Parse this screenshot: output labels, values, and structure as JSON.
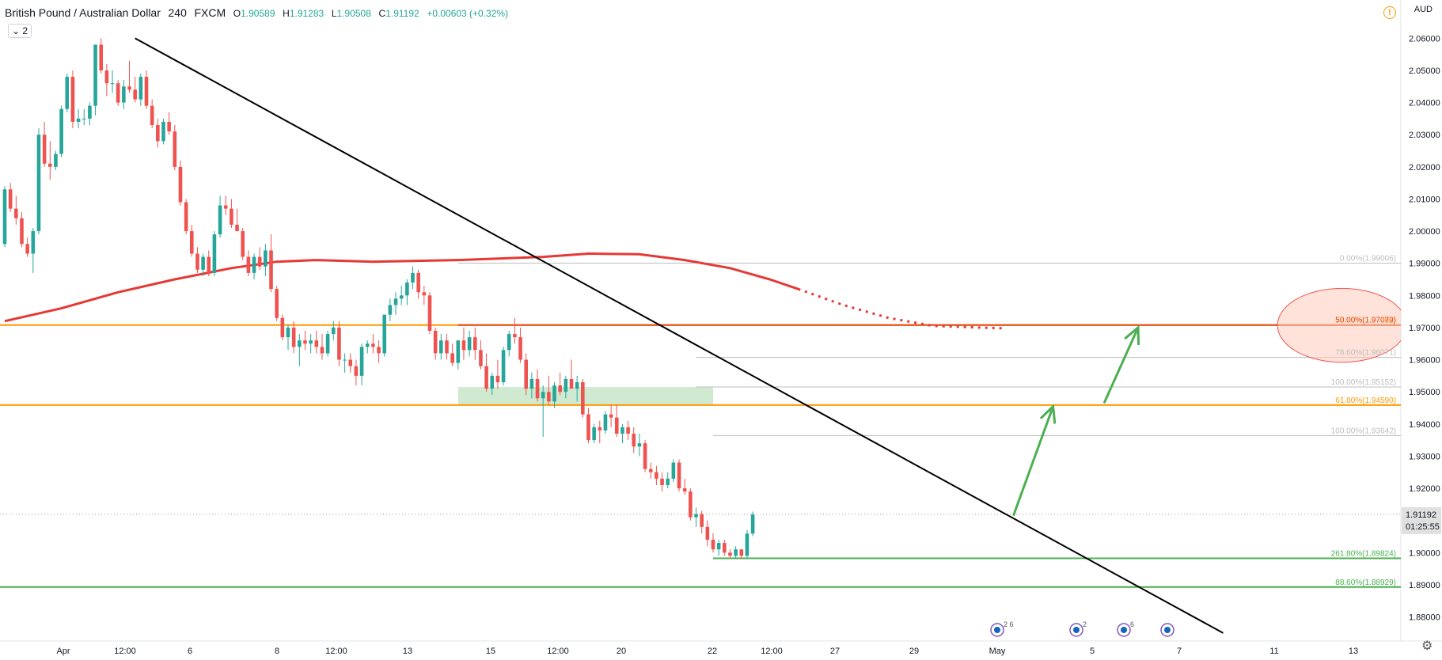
{
  "header": {
    "symbol": "British Pound / Australian Dollar",
    "interval": "240",
    "exchange": "FXCM",
    "open_label": "O",
    "open": "1.90589",
    "high_label": "H",
    "high": "1.91283",
    "low_label": "L",
    "low": "1.90508",
    "close_label": "C",
    "close": "1.91192",
    "change": "+0.00603 (+0.32%)"
  },
  "layers_badge": "2",
  "currency": "AUD",
  "warning_icon": "!",
  "settings_icon": "gear-icon",
  "colors": {
    "up": "#26a69a",
    "down": "#ef5350",
    "ma": "#e53935",
    "orange": "#ff9800",
    "green": "#4caf50",
    "trend": "#000000"
  },
  "chart_data": {
    "type": "candlestick",
    "ylim": [
      1.8725,
      2.0655
    ],
    "y_ticks": [
      "2.06000",
      "2.05000",
      "2.04000",
      "2.03000",
      "2.02000",
      "2.01000",
      "2.00000",
      "1.99000",
      "1.98000",
      "1.97000",
      "1.96000",
      "1.95000",
      "1.94000",
      "1.93000",
      "1.92000",
      "1.91000",
      "1.90000",
      "1.89000",
      "1.88000"
    ],
    "x_ticks": [
      "Apr",
      "12:00",
      "6",
      "8",
      "12:00",
      "13",
      "15",
      "12:00",
      "20",
      "22",
      "12:00",
      "27",
      "29",
      "May",
      "5",
      "7",
      "11",
      "13"
    ],
    "last_price": "1.91192",
    "countdown": "01:25:55",
    "candles": [
      [
        1.996,
        2.014,
        1.995,
        2.013
      ],
      [
        2.013,
        2.015,
        2.006,
        2.007
      ],
      [
        2.007,
        2.011,
        2.002,
        2.004
      ],
      [
        2.004,
        2.006,
        1.995,
        1.996
      ],
      [
        1.996,
        1.998,
        1.992,
        1.993
      ],
      [
        1.993,
        2.001,
        1.987,
        2.0
      ],
      [
        2.0,
        2.032,
        1.999,
        2.03
      ],
      [
        2.03,
        2.034,
        2.02,
        2.021
      ],
      [
        2.021,
        2.028,
        2.016,
        2.02
      ],
      [
        2.02,
        2.025,
        2.019,
        2.024
      ],
      [
        2.024,
        2.039,
        2.023,
        2.038
      ],
      [
        2.038,
        2.049,
        2.037,
        2.048
      ],
      [
        2.048,
        2.05,
        2.032,
        2.034
      ],
      [
        2.034,
        2.038,
        2.032,
        2.035
      ],
      [
        2.035,
        2.038,
        2.033,
        2.035
      ],
      [
        2.035,
        2.04,
        2.033,
        2.039
      ],
      [
        2.039,
        2.058,
        2.036,
        2.058
      ],
      [
        2.058,
        2.06,
        2.049,
        2.05
      ],
      [
        2.05,
        2.052,
        2.042,
        2.046
      ],
      [
        2.046,
        2.05,
        2.043,
        2.046
      ],
      [
        2.046,
        2.047,
        2.039,
        2.04
      ],
      [
        2.04,
        2.047,
        2.038,
        2.045
      ],
      [
        2.045,
        2.053,
        2.043,
        2.044
      ],
      [
        2.044,
        2.048,
        2.04,
        2.041
      ],
      [
        2.041,
        2.049,
        2.039,
        2.048
      ],
      [
        2.048,
        2.05,
        2.038,
        2.039
      ],
      [
        2.039,
        2.041,
        2.032,
        2.033
      ],
      [
        2.033,
        2.035,
        2.026,
        2.028
      ],
      [
        2.028,
        2.035,
        2.027,
        2.034
      ],
      [
        2.034,
        2.037,
        2.03,
        2.031
      ],
      [
        2.031,
        2.033,
        2.019,
        2.02
      ],
      [
        2.02,
        2.022,
        2.008,
        2.009
      ],
      [
        2.009,
        2.01,
        1.999,
        2.0
      ],
      [
        2.0,
        2.002,
        1.992,
        1.993
      ],
      [
        1.993,
        1.995,
        1.987,
        1.988
      ],
      [
        1.988,
        1.993,
        1.986,
        1.992
      ],
      [
        1.992,
        1.994,
        1.986,
        1.987
      ],
      [
        1.987,
        2.0,
        1.986,
        1.999
      ],
      [
        1.999,
        2.011,
        1.998,
        2.008
      ],
      [
        2.008,
        2.011,
        2.005,
        2.007
      ],
      [
        2.007,
        2.01,
        2.001,
        2.002
      ],
      [
        2.002,
        2.007,
        2.0,
        2.0
      ],
      [
        2.0,
        2.001,
        1.991,
        1.992
      ],
      [
        1.992,
        1.994,
        1.986,
        1.987
      ],
      [
        1.987,
        1.993,
        1.985,
        1.992
      ],
      [
        1.992,
        1.995,
        1.988,
        1.989
      ],
      [
        1.989,
        1.996,
        1.986,
        1.994
      ],
      [
        1.994,
        1.999,
        1.981,
        1.982
      ],
      [
        1.982,
        1.983,
        1.972,
        1.973
      ],
      [
        1.973,
        1.974,
        1.966,
        1.967
      ],
      [
        1.967,
        1.971,
        1.963,
        1.97
      ],
      [
        1.97,
        1.972,
        1.962,
        1.964
      ],
      [
        1.964,
        1.968,
        1.958,
        1.966
      ],
      [
        1.966,
        1.969,
        1.963,
        1.965
      ],
      [
        1.965,
        1.968,
        1.962,
        1.966
      ],
      [
        1.966,
        1.969,
        1.962,
        1.964
      ],
      [
        1.964,
        1.968,
        1.96,
        1.962
      ],
      [
        1.962,
        1.969,
        1.961,
        1.968
      ],
      [
        1.968,
        1.972,
        1.966,
        1.97
      ],
      [
        1.97,
        1.972,
        1.958,
        1.96
      ],
      [
        1.96,
        1.962,
        1.956,
        1.96
      ],
      [
        1.96,
        1.962,
        1.956,
        1.958
      ],
      [
        1.958,
        1.96,
        1.952,
        1.955
      ],
      [
        1.955,
        1.965,
        1.952,
        1.964
      ],
      [
        1.964,
        1.966,
        1.962,
        1.965
      ],
      [
        1.965,
        1.968,
        1.962,
        1.964
      ],
      [
        1.964,
        1.966,
        1.959,
        1.962
      ],
      [
        1.962,
        1.974,
        1.961,
        1.974
      ],
      [
        1.974,
        1.979,
        1.972,
        1.977
      ],
      [
        1.977,
        1.981,
        1.974,
        1.979
      ],
      [
        1.979,
        1.983,
        1.977,
        1.98
      ],
      [
        1.98,
        1.985,
        1.977,
        1.984
      ],
      [
        1.984,
        1.989,
        1.982,
        1.987
      ],
      [
        1.987,
        1.988,
        1.979,
        1.981
      ],
      [
        1.981,
        1.983,
        1.977,
        1.98
      ],
      [
        1.98,
        1.981,
        1.968,
        1.969
      ],
      [
        1.969,
        1.97,
        1.96,
        1.962
      ],
      [
        1.962,
        1.968,
        1.96,
        1.966
      ],
      [
        1.966,
        1.968,
        1.96,
        1.962
      ],
      [
        1.962,
        1.965,
        1.958,
        1.959
      ],
      [
        1.959,
        1.966,
        1.957,
        1.966
      ],
      [
        1.966,
        1.97,
        1.96,
        1.963
      ],
      [
        1.963,
        1.969,
        1.961,
        1.967
      ],
      [
        1.967,
        1.97,
        1.96,
        1.963
      ],
      [
        1.963,
        1.966,
        1.957,
        1.958
      ],
      [
        1.958,
        1.962,
        1.95,
        1.951
      ],
      [
        1.951,
        1.956,
        1.949,
        1.955
      ],
      [
        1.955,
        1.96,
        1.951,
        1.953
      ],
      [
        1.953,
        1.964,
        1.952,
        1.963
      ],
      [
        1.963,
        1.969,
        1.961,
        1.968
      ],
      [
        1.968,
        1.973,
        1.965,
        1.967
      ],
      [
        1.967,
        1.97,
        1.959,
        1.96
      ],
      [
        1.96,
        1.962,
        1.949,
        1.951
      ],
      [
        1.951,
        1.956,
        1.948,
        1.954
      ],
      [
        1.954,
        1.957,
        1.947,
        1.948
      ],
      [
        1.948,
        1.952,
        1.936,
        1.95
      ],
      [
        1.95,
        1.955,
        1.946,
        1.947
      ],
      [
        1.947,
        1.953,
        1.945,
        1.952
      ],
      [
        1.952,
        1.956,
        1.949,
        1.95
      ],
      [
        1.95,
        1.955,
        1.948,
        1.954
      ],
      [
        1.954,
        1.96,
        1.951,
        1.951
      ],
      [
        1.951,
        1.955,
        1.947,
        1.953
      ],
      [
        1.953,
        1.954,
        1.942,
        1.943
      ],
      [
        1.943,
        1.945,
        1.934,
        1.935
      ],
      [
        1.935,
        1.94,
        1.934,
        1.939
      ],
      [
        1.939,
        1.941,
        1.934,
        1.938
      ],
      [
        1.938,
        1.944,
        1.937,
        1.943
      ],
      [
        1.943,
        1.946,
        1.939,
        1.942
      ],
      [
        1.942,
        1.946,
        1.936,
        1.937
      ],
      [
        1.937,
        1.94,
        1.934,
        1.939
      ],
      [
        1.939,
        1.941,
        1.935,
        1.937
      ],
      [
        1.937,
        1.939,
        1.931,
        1.933
      ],
      [
        1.933,
        1.937,
        1.93,
        1.934
      ],
      [
        1.934,
        1.935,
        1.925,
        1.926
      ],
      [
        1.926,
        1.928,
        1.923,
        1.925
      ],
      [
        1.925,
        1.927,
        1.921,
        1.923
      ],
      [
        1.923,
        1.925,
        1.919,
        1.921
      ],
      [
        1.921,
        1.925,
        1.92,
        1.923
      ],
      [
        1.923,
        1.929,
        1.922,
        1.928
      ],
      [
        1.928,
        1.929,
        1.919,
        1.92
      ],
      [
        1.92,
        1.923,
        1.918,
        1.919
      ],
      [
        1.919,
        1.92,
        1.91,
        1.911
      ],
      [
        1.911,
        1.914,
        1.908,
        1.912
      ],
      [
        1.912,
        1.913,
        1.906,
        1.908
      ],
      [
        1.908,
        1.91,
        1.902,
        1.904
      ],
      [
        1.904,
        1.906,
        1.9,
        1.901
      ],
      [
        1.901,
        1.904,
        1.899,
        1.903
      ],
      [
        1.903,
        1.904,
        1.899,
        1.9
      ],
      [
        1.9,
        1.901,
        1.8982,
        1.899
      ],
      [
        1.899,
        1.902,
        1.898,
        1.901
      ],
      [
        1.901,
        1.901,
        1.898,
        1.899
      ],
      [
        1.899,
        1.907,
        1.898,
        1.9059
      ],
      [
        1.9059,
        1.9128,
        1.9051,
        1.9119
      ]
    ],
    "moving_average": {
      "solid": [
        [
          0,
          1.972
        ],
        [
          10,
          1.976
        ],
        [
          20,
          1.981
        ],
        [
          30,
          1.985
        ],
        [
          40,
          1.9885
        ],
        [
          48,
          1.9905
        ],
        [
          55,
          1.991
        ],
        [
          65,
          1.9905
        ],
        [
          80,
          1.991
        ],
        [
          95,
          1.992
        ],
        [
          103,
          1.993
        ],
        [
          112,
          1.9928
        ],
        [
          120,
          1.991
        ],
        [
          128,
          1.9885
        ],
        [
          135,
          1.985
        ],
        [
          140,
          1.982
        ]
      ],
      "dotted": [
        [
          140,
          1.982
        ],
        [
          148,
          1.977
        ],
        [
          156,
          1.973
        ],
        [
          164,
          1.9705
        ],
        [
          172,
          1.97
        ],
        [
          176,
          1.9698
        ]
      ]
    },
    "trendline": {
      "start": [
        23,
        2.06
      ],
      "end": [
        215,
        1.875
      ]
    },
    "horizontal_lines": [
      {
        "name": "resistance-upper",
        "y": 1.9708,
        "color": "#ff9800",
        "x_from": -1
      },
      {
        "name": "fib-50-line",
        "y": 1.97079,
        "color": "#e64a19",
        "x_from": 80
      },
      {
        "name": "resistance-lower",
        "y": 1.9459,
        "color": "#ff9800",
        "x_from": -1
      },
      {
        "name": "fib-261-line",
        "y": 1.89824,
        "color": "#4caf50",
        "x_from": 125
      },
      {
        "name": "fib-886-line",
        "y": 1.88929,
        "color": "#4caf50",
        "x_from": -1
      },
      {
        "name": "fib-0-line",
        "y": 1.99006,
        "color": "#bdbdbd",
        "x_from": 80
      },
      {
        "name": "fib-786-line",
        "y": 1.96071,
        "color": "#bdbdbd",
        "x_from": 122
      },
      {
        "name": "fib-100-upper-line",
        "y": 1.95152,
        "color": "#bdbdbd",
        "x_from": 122
      },
      {
        "name": "fib-100-lower-line",
        "y": 1.93642,
        "color": "#bdbdbd",
        "x_from": 125
      },
      {
        "name": "last-price-line",
        "y": 1.91192,
        "color": "#9e9e9e",
        "x_from": -1,
        "dotted": true
      }
    ],
    "fib_labels": [
      {
        "text": "0.00%(1.99006)",
        "y": 1.99006,
        "color": "#bdbdbd"
      },
      {
        "text": "50.00%(1.97082)",
        "y": 1.97082,
        "color": "#ff9800"
      },
      {
        "text": "50.00%(1.97079)",
        "y": 1.97079,
        "color": "#e64a19"
      },
      {
        "text": "78.60%(1.96071)",
        "y": 1.96071,
        "color": "#bdbdbd"
      },
      {
        "text": "100.00%(1.95152)",
        "y": 1.95152,
        "color": "#bdbdbd"
      },
      {
        "text": "61.80%(1.94590)",
        "y": 1.9459,
        "color": "#ff9800"
      },
      {
        "text": "100.00%(1.93642)",
        "y": 1.93642,
        "color": "#bdbdbd"
      },
      {
        "text": "261.80%(1.89824)",
        "y": 1.89824,
        "color": "#4caf50"
      },
      {
        "text": "88.60%(1.88929)",
        "y": 1.88929,
        "color": "#4caf50"
      }
    ],
    "support_zone": {
      "x_from": 80,
      "x_to": 125,
      "y_top": 1.9515,
      "y_bottom": 1.9459
    },
    "arrows": [
      {
        "from": [
          178,
          1.9115
        ],
        "to": [
          185,
          1.9455
        ]
      },
      {
        "from": [
          194,
          1.9465
        ],
        "to": [
          200,
          1.97
        ]
      }
    ],
    "target_circle": {
      "center": [
        236,
        1.9707
      ],
      "r_x": 3.8,
      "r_y": 0.0115
    },
    "events": [
      "2 6",
      "2",
      "6",
      ""
    ]
  }
}
